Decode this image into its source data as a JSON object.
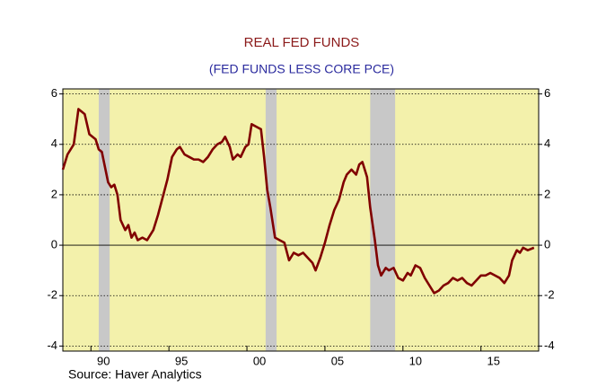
{
  "chart_data": {
    "type": "line",
    "title": "REAL FED FUNDS",
    "subtitle": "(FED FUNDS LESS CORE PCE)",
    "source": "Source: Haver Analytics",
    "xlim": [
      1988.2,
      2018.7
    ],
    "xticks": [
      {
        "value": 1990,
        "label": "90"
      },
      {
        "value": 1995,
        "label": "95"
      },
      {
        "value": 2000,
        "label": "00"
      },
      {
        "value": 2005,
        "label": "05"
      },
      {
        "value": 2010,
        "label": "10"
      },
      {
        "value": 2015,
        "label": "15"
      }
    ],
    "ylim": [
      -4.2,
      6.2
    ],
    "yticks": [
      -4,
      -2,
      0,
      2,
      4,
      6
    ],
    "grid": true,
    "background": "#f3f1ab",
    "recessions": [
      [
        1990.5,
        1991.2
      ],
      [
        2001.2,
        2001.9
      ],
      [
        2007.9,
        2009.5
      ]
    ],
    "recession_color": "#c8c8c8",
    "series": [
      {
        "color": "#800000",
        "x": [
          1988.2,
          1988.5,
          1988.9,
          1989.2,
          1989.4,
          1989.6,
          1989.9,
          1990.3,
          1990.5,
          1990.7,
          1991.1,
          1991.3,
          1991.5,
          1991.7,
          1991.9,
          1992.2,
          1992.4,
          1992.6,
          1992.8,
          1993.0,
          1993.3,
          1993.6,
          1993.8,
          1994.0,
          1994.3,
          1994.6,
          1994.9,
          1995.2,
          1995.5,
          1995.7,
          1996.0,
          1996.3,
          1996.6,
          1996.9,
          1997.2,
          1997.5,
          1997.8,
          1998.1,
          1998.4,
          1998.6,
          1998.9,
          1999.1,
          1999.4,
          1999.6,
          1999.9,
          2000.1,
          2000.3,
          2000.6,
          2000.9,
          2001.1,
          2001.3,
          2001.5,
          2001.8,
          2002.1,
          2002.4,
          2002.7,
          2003.0,
          2003.3,
          2003.6,
          2003.9,
          2004.2,
          2004.4,
          2004.7,
          2005.0,
          2005.3,
          2005.6,
          2005.9,
          2006.2,
          2006.4,
          2006.7,
          2007.0,
          2007.2,
          2007.4,
          2007.7,
          2007.9,
          2008.2,
          2008.4,
          2008.6,
          2008.9,
          2009.1,
          2009.4,
          2009.7,
          2010.0,
          2010.3,
          2010.5,
          2010.8,
          2011.1,
          2011.4,
          2011.7,
          2012.0,
          2012.3,
          2012.6,
          2012.9,
          2013.2,
          2013.5,
          2013.8,
          2014.1,
          2014.4,
          2014.7,
          2015.0,
          2015.3,
          2015.6,
          2015.9,
          2016.2,
          2016.5,
          2016.8,
          2017.0,
          2017.3,
          2017.5,
          2017.7,
          2018.0,
          2018.4
        ],
        "values": [
          3.0,
          3.6,
          4.0,
          5.4,
          5.3,
          5.2,
          4.4,
          4.2,
          3.8,
          3.7,
          2.5,
          2.3,
          2.4,
          2.0,
          1.0,
          0.6,
          0.8,
          0.3,
          0.5,
          0.2,
          0.3,
          0.2,
          0.4,
          0.6,
          1.2,
          1.9,
          2.6,
          3.5,
          3.8,
          3.9,
          3.6,
          3.5,
          3.4,
          3.4,
          3.3,
          3.5,
          3.8,
          4.0,
          4.1,
          4.3,
          3.9,
          3.4,
          3.6,
          3.5,
          3.9,
          4.0,
          4.8,
          4.7,
          4.6,
          3.5,
          2.2,
          1.5,
          0.3,
          0.2,
          0.1,
          -0.6,
          -0.3,
          -0.4,
          -0.3,
          -0.5,
          -0.7,
          -1.0,
          -0.5,
          0.1,
          0.8,
          1.4,
          1.8,
          2.5,
          2.8,
          3.0,
          2.8,
          3.2,
          3.3,
          2.7,
          1.5,
          0.2,
          -0.8,
          -1.2,
          -0.9,
          -1.0,
          -0.9,
          -1.3,
          -1.4,
          -1.1,
          -1.2,
          -0.8,
          -0.9,
          -1.3,
          -1.6,
          -1.9,
          -1.8,
          -1.6,
          -1.5,
          -1.3,
          -1.4,
          -1.3,
          -1.5,
          -1.6,
          -1.4,
          -1.2,
          -1.2,
          -1.1,
          -1.2,
          -1.3,
          -1.5,
          -1.2,
          -0.6,
          -0.2,
          -0.3,
          -0.1,
          -0.2,
          -0.1
        ]
      }
    ]
  }
}
